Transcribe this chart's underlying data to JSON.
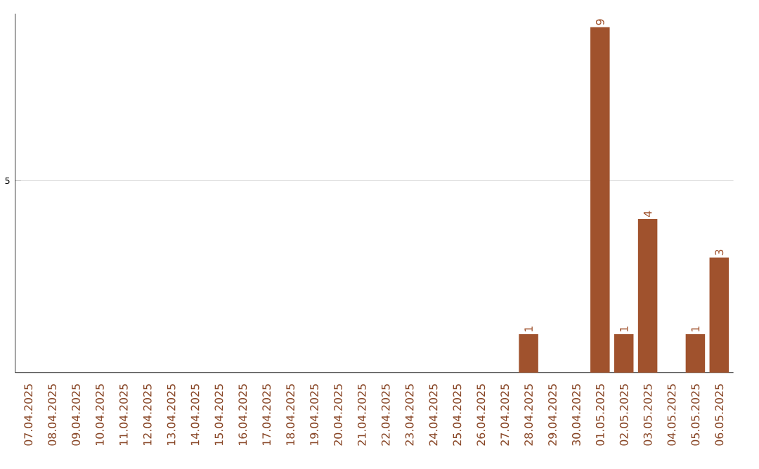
{
  "chart_data": {
    "type": "bar",
    "categories": [
      "07.04.2025",
      "08.04.2025",
      "09.04.2025",
      "10.04.2025",
      "11.04.2025",
      "12.04.2025",
      "13.04.2025",
      "14.04.2025",
      "15.04.2025",
      "16.04.2025",
      "17.04.2025",
      "18.04.2025",
      "19.04.2025",
      "20.04.2025",
      "21.04.2025",
      "22.04.2025",
      "23.04.2025",
      "24.04.2025",
      "25.04.2025",
      "26.04.2025",
      "27.04.2025",
      "28.04.2025",
      "29.04.2025",
      "30.04.2025",
      "01.05.2025",
      "02.05.2025",
      "03.05.2025",
      "04.05.2025",
      "05.05.2025",
      "06.05.2025"
    ],
    "values": [
      null,
      null,
      null,
      null,
      null,
      null,
      null,
      null,
      null,
      null,
      null,
      null,
      null,
      null,
      null,
      null,
      null,
      null,
      null,
      null,
      null,
      1,
      null,
      null,
      9,
      1,
      4,
      null,
      1,
      3
    ],
    "data_labels": true,
    "color": "#a0522d",
    "ylim": [
      0,
      9.35
    ],
    "yticks": [
      5
    ],
    "grid": "y"
  }
}
